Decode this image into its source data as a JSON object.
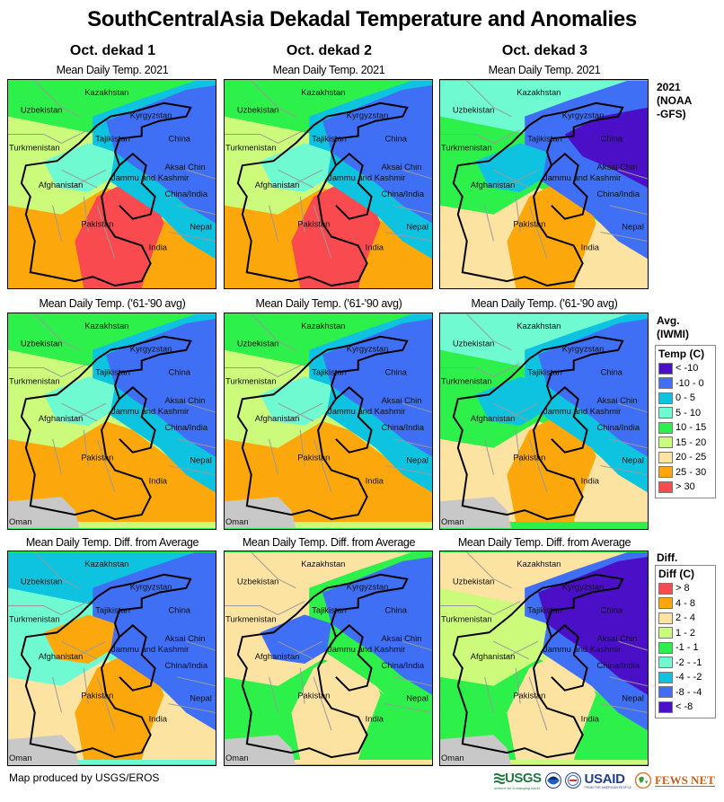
{
  "title": "SouthCentralAsia Dekadal Temperature and Anomalies",
  "columns": [
    {
      "title": "Oct. dekad 1"
    },
    {
      "title": "Oct. dekad 2"
    },
    {
      "title": "Oct. dekad 3"
    }
  ],
  "rows": [
    {
      "panel_title": "Mean Daily Temp. 2021",
      "label": [
        "2021",
        "(NOAA",
        "-GFS)"
      ],
      "kind": "temp"
    },
    {
      "panel_title": "Mean Daily Temp. ('61-'90 avg)",
      "label": [
        "Avg.",
        "(IWMI)"
      ],
      "kind": "temp"
    },
    {
      "panel_title": "Mean Daily Temp. Diff. from Average",
      "label": [
        "Diff."
      ],
      "kind": "diff"
    }
  ],
  "map_labels": [
    "Kazakhstan",
    "Uzbekistan",
    "Kyrgyzstan",
    "Tajikistan",
    "China",
    "Turkmenistan",
    "Aksai Chin",
    "Jammu and Kashmir",
    "Afghanistan",
    "China/India",
    "Pakistan",
    "Nepal",
    "India",
    "Oman"
  ],
  "legends": {
    "temp": {
      "title": "Temp (C)",
      "items": [
        {
          "label": "< -10",
          "color": "#4b0fc8"
        },
        {
          "label": "-10 - 0",
          "color": "#3f6ff5"
        },
        {
          "label": "0 - 5",
          "color": "#0ec3e0"
        },
        {
          "label": "5 - 10",
          "color": "#6ffad2"
        },
        {
          "label": "10 - 15",
          "color": "#2ef04a"
        },
        {
          "label": "15 - 20",
          "color": "#ccfb7c"
        },
        {
          "label": "20 - 25",
          "color": "#fde3a1"
        },
        {
          "label": "25 - 30",
          "color": "#fca70c"
        },
        {
          "label": "> 30",
          "color": "#f84a4f"
        }
      ]
    },
    "diff": {
      "title": "Diff (C)",
      "items": [
        {
          "label": "> 8",
          "color": "#f84a4f"
        },
        {
          "label": "4 - 8",
          "color": "#fca70c"
        },
        {
          "label": "2 - 4",
          "color": "#fde3a1"
        },
        {
          "label": "1 - 2",
          "color": "#ccfb7c"
        },
        {
          "label": "-1 - 1",
          "color": "#2ef04a"
        },
        {
          "label": "-2 - -1",
          "color": "#6ffad2"
        },
        {
          "label": "-4 - -2",
          "color": "#0ec3e0"
        },
        {
          "label": "-8 - -4",
          "color": "#3f6ff5"
        },
        {
          "label": "< -8",
          "color": "#4b0fc8"
        }
      ]
    }
  },
  "footer": {
    "credit": "Map produced by USGS/EROS",
    "logos": [
      "USGS",
      "NOAA",
      "USAID",
      "FEWS NET"
    ],
    "usgs_tagline": "science for a changing world",
    "usaid_tagline": "FROM THE AMERICAN PEOPLE"
  }
}
